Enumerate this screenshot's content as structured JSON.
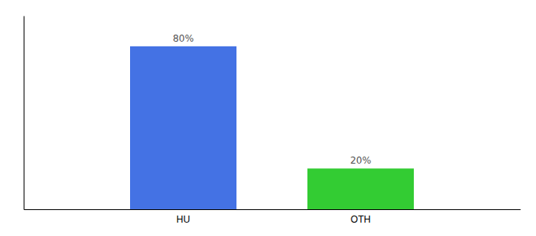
{
  "chart_data": {
    "type": "bar",
    "categories": [
      "HU",
      "OTH"
    ],
    "values": [
      80,
      20
    ],
    "value_labels": [
      "80%",
      "20%"
    ],
    "colors": [
      "#4472e4",
      "#33cc33"
    ],
    "ylim": [
      0,
      95
    ],
    "yticks": [],
    "data_labels": true,
    "tick_labels": "x"
  }
}
